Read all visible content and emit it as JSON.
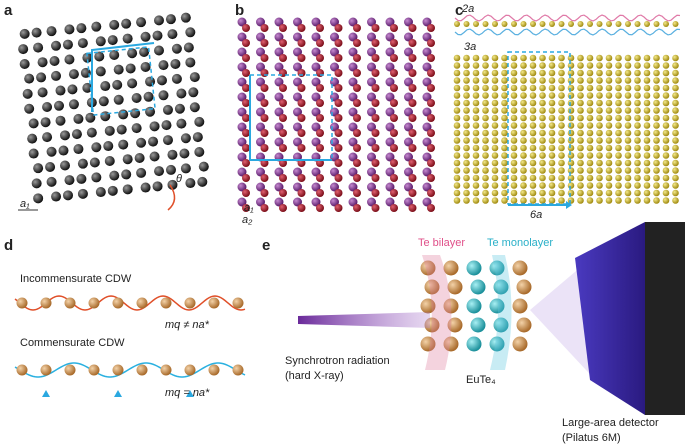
{
  "panel_a": {
    "label": "a",
    "theta": "θ",
    "lattice": "a₁"
  },
  "panel_b": {
    "label": "b",
    "lattice_1": "a₁",
    "lattice_2": "a₂"
  },
  "panel_c": {
    "label": "c",
    "period_2": "2a",
    "period_3": "3a",
    "period_6": "6a"
  },
  "panel_d": {
    "label": "d",
    "incommensurate": {
      "title": "Incommensurate CDW",
      "condition": "mq ≠ na*"
    },
    "commensurate": {
      "title": "Commensurate CDW",
      "condition": "mq = na*"
    }
  },
  "panel_e": {
    "label": "e",
    "bilayer": "Te bilayer",
    "monolayer": "Te monolayer",
    "source": [
      "Synchrotron radiation",
      "(hard X-ray)"
    ],
    "sample": "EuTe₄",
    "detector": [
      "Large-area detector",
      "(Pilatus 6M)"
    ]
  }
}
